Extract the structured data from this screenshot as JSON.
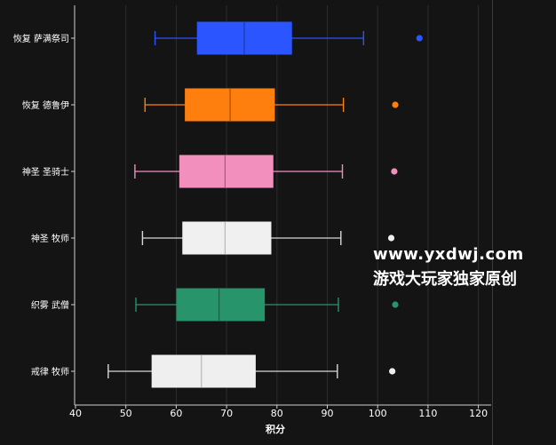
{
  "chart_data": {
    "type": "boxplot",
    "xlabel": "积分",
    "ylabel": "",
    "xlim": [
      40,
      122
    ],
    "xticks": [
      40,
      50,
      60,
      70,
      80,
      90,
      100,
      110,
      120
    ],
    "grid": "vertical",
    "orientation": "horizontal",
    "categories": [
      "恢复 萨满祭司",
      "恢复 德鲁伊",
      "神圣 圣骑士",
      "神圣 牧师",
      "织雾 武僧",
      "戒律 牧师"
    ],
    "boxes": [
      {
        "label": "恢复 萨满祭司",
        "whisker_low": 55.8,
        "q1": 64.2,
        "median": 73.5,
        "q3": 82.9,
        "whisker_high": 97.2,
        "outliers": [
          108.3
        ],
        "color": "#2a55ff"
      },
      {
        "label": "恢复 德鲁伊",
        "whisker_low": 53.8,
        "q1": 61.8,
        "median": 70.7,
        "q3": 79.5,
        "whisker_high": 93.2,
        "outliers": [
          103.5
        ],
        "color": "#ff7f0e"
      },
      {
        "label": "神圣 圣骑士",
        "whisker_low": 51.8,
        "q1": 60.7,
        "median": 69.7,
        "q3": 79.2,
        "whisker_high": 93.0,
        "outliers": [
          103.3
        ],
        "color": "#f38fbd"
      },
      {
        "label": "神圣 牧师",
        "whisker_low": 53.3,
        "q1": 61.3,
        "median": 69.7,
        "q3": 78.8,
        "whisker_high": 92.7,
        "outliers": [
          102.7
        ],
        "color": "#f0f0f0"
      },
      {
        "label": "织雾 武僧",
        "whisker_low": 52.0,
        "q1": 60.1,
        "median": 68.5,
        "q3": 77.5,
        "whisker_high": 92.2,
        "outliers": [
          103.5
        ],
        "color": "#27946b"
      },
      {
        "label": "戒律 牧师",
        "whisker_low": 46.5,
        "q1": 55.2,
        "median": 65.0,
        "q3": 75.7,
        "whisker_high": 92.0,
        "outliers": [
          102.9
        ],
        "color": "#efefef"
      }
    ]
  },
  "watermark": {
    "line1": "www.yxdwj.com",
    "line2": "游戏大玩家独家原创"
  }
}
